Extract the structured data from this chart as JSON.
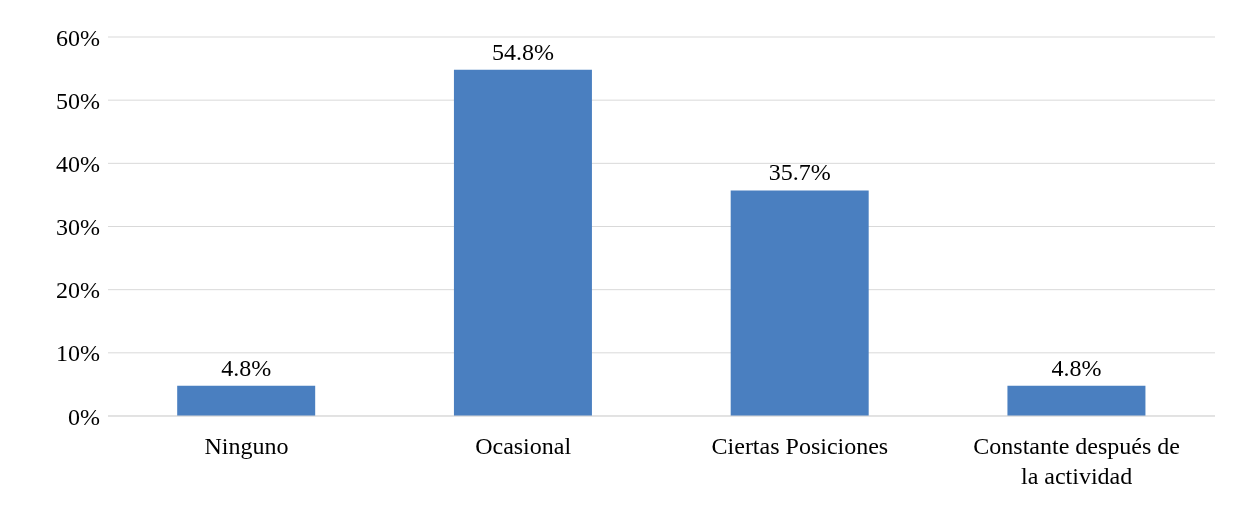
{
  "chart_data": {
    "type": "bar",
    "categories": [
      "Ninguno",
      "Ocasional",
      "Ciertas Posiciones",
      "Constante después de la actividad"
    ],
    "values": [
      4.8,
      54.8,
      35.7,
      4.8
    ],
    "color": "#4a7fc0",
    "value_labels": [
      "4.8%",
      "54.8%",
      "35.7%",
      "4.8%"
    ],
    "ylim": [
      0,
      60
    ],
    "yticks": [
      {
        "value": 0,
        "label": "0%"
      },
      {
        "value": 10,
        "label": "10%"
      },
      {
        "value": 20,
        "label": "20%"
      },
      {
        "value": 30,
        "label": "30%"
      },
      {
        "value": 40,
        "label": "40%"
      },
      {
        "value": 50,
        "label": "50%"
      },
      {
        "value": 60,
        "label": "60%"
      }
    ],
    "grid": "y",
    "legend": false
  }
}
